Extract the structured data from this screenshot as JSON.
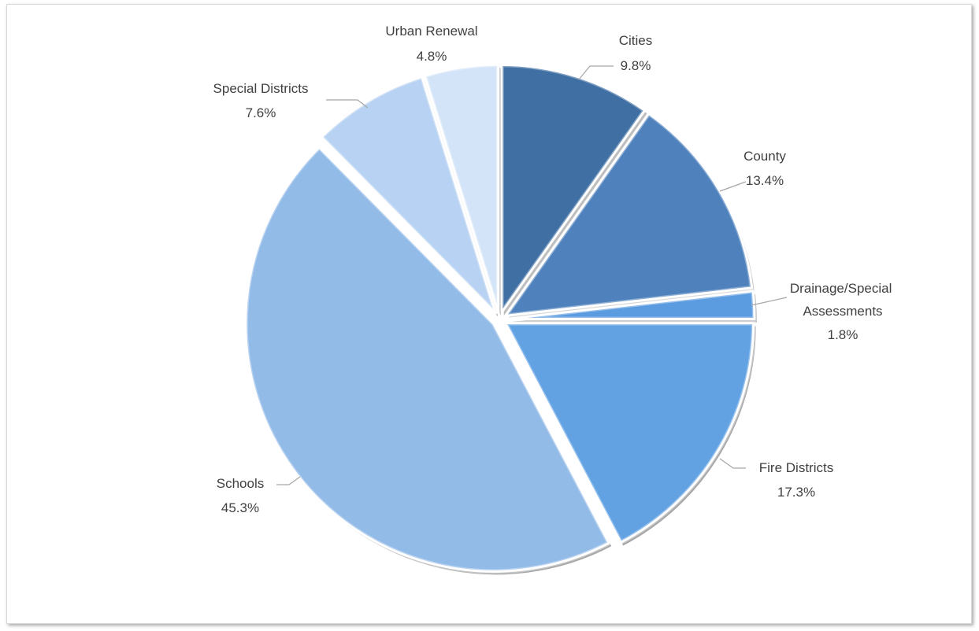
{
  "chart_data": {
    "type": "pie",
    "title": "",
    "start_angle_deg": 0,
    "direction": "clockwise",
    "slices": [
      {
        "name": "Cities",
        "value": 9.8,
        "label": "9.8%",
        "color": "#3f6fa3"
      },
      {
        "name": "County",
        "value": 13.4,
        "label": "13.4%",
        "color": "#4f82bd"
      },
      {
        "name": "Drainage/Special Assessments",
        "value": 1.8,
        "label": "1.8%",
        "color": "#5b9be0"
      },
      {
        "name": "Fire Districts",
        "value": 17.3,
        "label": "17.3%",
        "color": "#62a2e3"
      },
      {
        "name": "Schools",
        "value": 45.3,
        "label": "45.3%",
        "color": "#93bbe8"
      },
      {
        "name": "Special Districts",
        "value": 7.6,
        "label": "7.6%",
        "color": "#b7d2f2"
      },
      {
        "name": "Urban Renewal",
        "value": 4.8,
        "label": "4.8%",
        "color": "#d3e4f8"
      }
    ],
    "legend": "none",
    "labels": "outside-with-leader-lines"
  }
}
